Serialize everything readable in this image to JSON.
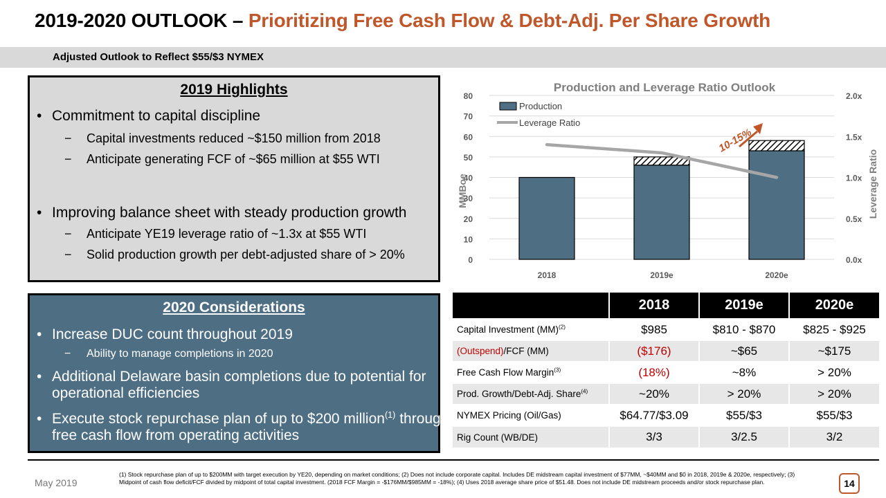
{
  "title": {
    "main": "2019-2020 OUTLOOK – ",
    "accent": "Prioritizing Free Cash Flow & Debt-Adj. Per Share Growth"
  },
  "subtitle": "Adjusted Outlook to Reflect $55/$3 NYMEX",
  "highlights": {
    "heading": "2019 Highlights",
    "bullet1": "Commitment to capital discipline",
    "sub1a": "Capital investments reduced ~$150 million from 2018",
    "sub1b": "Anticipate generating FCF of ~$65 million at $55 WTI",
    "bullet2": "Improving balance sheet with steady production growth",
    "sub2a": "Anticipate YE19 leverage ratio of ~1.3x at $55 WTI",
    "sub2b": "Solid production growth per debt-adjusted share of > 20%"
  },
  "considerations": {
    "heading": "2020 Considerations",
    "bullet1": "Increase DUC count throughout 2019",
    "sub1a": "Ability to manage completions in 2020",
    "bullet2_line1": "Additional Delaware basin completions due to potential for",
    "bullet2_line2": "operational efficiencies",
    "bullet3_pre": "Execute stock repurchase plan of up to $200 million",
    "bullet3_sup": "(1)",
    "bullet3_post": " through",
    "bullet3_line2": "free cash flow from operating activities"
  },
  "chart_data": {
    "type": "bar",
    "title": "Production and Leverage Ratio Outlook",
    "categories": [
      "2018",
      "2019e",
      "2020e"
    ],
    "series": [
      {
        "name": "Production",
        "type": "bar",
        "axis": "left",
        "values": [
          40,
          46,
          53
        ],
        "hatched_increment": [
          0,
          4,
          5
        ],
        "color": "#4e6e84"
      },
      {
        "name": "Leverage Ratio",
        "type": "line",
        "axis": "right",
        "values": [
          1.4,
          1.3,
          1.0
        ],
        "color": "#a6a6a6"
      }
    ],
    "ylabel": "MMBoe",
    "y2label": "Leverage Ratio",
    "ylim": [
      0,
      80
    ],
    "yticks": [
      "0",
      "10",
      "20",
      "30",
      "40",
      "50",
      "60",
      "70",
      "80"
    ],
    "y2lim": [
      0,
      2
    ],
    "y2ticks": [
      "0.0x",
      "0.5x",
      "1.0x",
      "1.5x",
      "2.0x"
    ],
    "legend": "top-left",
    "grid": true,
    "callout": "10-15%",
    "callout_color": "#c0572b"
  },
  "table": {
    "headers": [
      "",
      "2018",
      "2019e",
      "2020e"
    ],
    "rows": [
      {
        "label": "Capital Investment (MM)",
        "sup": "(2)",
        "pre": "",
        "vals": [
          "$985",
          "$810 - $870",
          "$825 - $925"
        ]
      },
      {
        "label": "/FCF (MM)",
        "sup": "",
        "pre": "(Outspend)",
        "vals": [
          "($176)",
          "~$65",
          "~$175"
        ]
      },
      {
        "label": "Free Cash Flow Margin",
        "sup": "(3)",
        "pre": "",
        "vals": [
          "(18%)",
          "~8%",
          "> 20%"
        ]
      },
      {
        "label": "Prod. Growth/Debt-Adj. Share",
        "sup": "(4)",
        "pre": "",
        "vals": [
          "~20%",
          "> 20%",
          "> 20%"
        ]
      },
      {
        "label": "NYMEX Pricing (Oil/Gas)",
        "sup": "",
        "pre": "",
        "vals": [
          "$64.77/$3.09",
          "$55/$3",
          "$55/$3"
        ]
      },
      {
        "label": "Rig Count (WB/DE)",
        "sup": "",
        "pre": "",
        "vals": [
          "3/3",
          "3/2.5",
          "3/2"
        ]
      }
    ],
    "negative_color": "#c00000"
  },
  "footer": {
    "date": "May 2019",
    "page": "14",
    "footnote": "(1)  Stock repurchase plan of up to $200MM with target execution by YE20, depending on market conditions; (2) Does not include corporate capital.  Includes DE midstream capital investment of $77MM, ~$40MM and $0 in 2018, 2019e & 2020e, respectively; (3) Midpoint of cash flow deficit/FCF divided by midpoint of total capital investment. (2018 FCF Margin = -$176MM/$985MM = -18%); (4)  Uses 2018 average share price of $51.48. Does not include DE midstream proceeds and/or stock repurchase plan."
  }
}
